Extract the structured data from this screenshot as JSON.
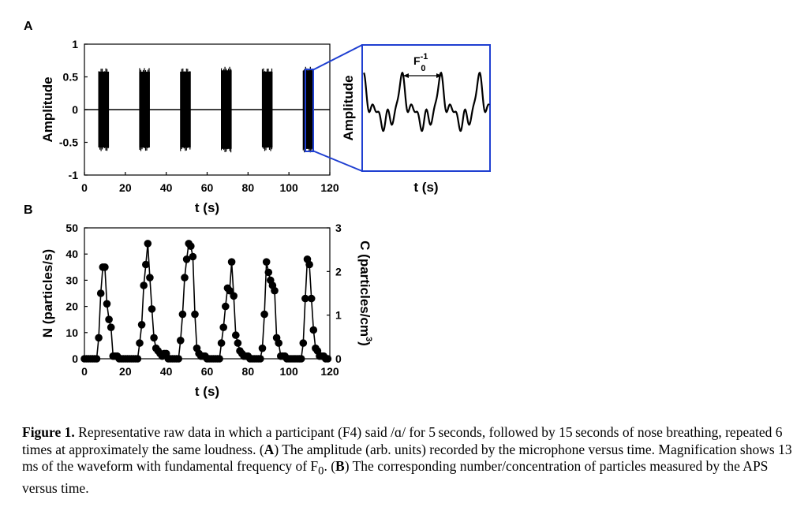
{
  "chart_data": [
    {
      "panel": "A",
      "type": "line",
      "xlabel": "t (s)",
      "ylabel": "Amplitude",
      "xlim": [
        0,
        120
      ],
      "ylim": [
        -1,
        1
      ],
      "xticks": [
        "0",
        "20",
        "40",
        "60",
        "80",
        "100",
        "120"
      ],
      "yticks": [
        "-1",
        "-0.5",
        "0",
        "0.5",
        "1"
      ],
      "voice_bursts": [
        {
          "start": 7,
          "end": 12,
          "amplitude": 0.58
        },
        {
          "start": 27,
          "end": 32,
          "amplitude": 0.58
        },
        {
          "start": 47,
          "end": 52,
          "amplitude": 0.58
        },
        {
          "start": 67,
          "end": 72,
          "amplitude": 0.6
        },
        {
          "start": 87,
          "end": 92,
          "amplitude": 0.58
        },
        {
          "start": 107,
          "end": 112,
          "amplitude": 0.6
        }
      ],
      "inset": {
        "xlabel": "t (s)",
        "ylabel": "Amplitude",
        "annotation_base": "F",
        "annotation_sup": "-1",
        "annotation_sub": "0"
      }
    },
    {
      "panel": "B",
      "type": "line",
      "xlabel": "t (s)",
      "ylabel": "N (particles/s)",
      "ylabel_right": "C (particles/cm",
      "ylabel_right_sup": "3",
      "ylabel_right_end": ")",
      "xlim": [
        0,
        120
      ],
      "ylim": [
        0,
        50
      ],
      "ylim_right": [
        0,
        3
      ],
      "xticks": [
        "0",
        "20",
        "40",
        "60",
        "80",
        "100",
        "120"
      ],
      "yticks": [
        "0",
        "10",
        "20",
        "30",
        "40",
        "50"
      ],
      "yticks_right": [
        "0",
        "1",
        "2",
        "3"
      ],
      "series": [
        {
          "x": [
            0,
            1,
            2,
            3,
            4,
            5,
            6,
            7,
            8,
            9,
            10,
            11,
            12,
            13,
            14,
            15,
            16,
            17,
            18,
            19,
            20,
            21,
            22,
            23,
            24,
            25,
            26,
            27,
            28,
            29,
            30,
            31,
            32,
            33,
            34,
            35,
            36,
            37,
            38,
            39,
            40,
            41,
            42,
            43,
            44,
            45,
            46,
            47,
            48,
            49,
            50,
            51,
            52,
            53,
            54,
            55,
            56,
            57,
            58,
            59,
            60,
            61,
            62,
            63,
            64,
            65,
            66,
            67,
            68,
            69,
            70,
            71,
            72,
            73,
            74,
            75,
            76,
            77,
            78,
            79,
            80,
            81,
            82,
            83,
            84,
            85,
            86,
            87,
            88,
            89,
            90,
            91,
            92,
            93,
            94,
            95,
            96,
            97,
            98,
            99,
            100,
            101,
            102,
            103,
            104,
            105,
            106,
            107,
            108,
            109,
            110,
            111,
            112,
            113,
            114,
            115,
            116,
            117,
            118,
            119
          ],
          "y": [
            0,
            0,
            0,
            0,
            0,
            0,
            0,
            8,
            25,
            35,
            35,
            21,
            15,
            12,
            1,
            1,
            1,
            0,
            0,
            0,
            0,
            0,
            0,
            0,
            0,
            0,
            0,
            6,
            13,
            28,
            36,
            44,
            31,
            19,
            8,
            4,
            3,
            2,
            1,
            2,
            2,
            0,
            0,
            0,
            0,
            0,
            0,
            7,
            17,
            31,
            38,
            44,
            43,
            39,
            17,
            4,
            2,
            1,
            1,
            1,
            0,
            0,
            0,
            0,
            0,
            0,
            0,
            6,
            12,
            20,
            27,
            26,
            37,
            24,
            9,
            6,
            3,
            2,
            1,
            1,
            1,
            0,
            0,
            0,
            0,
            0,
            0,
            4,
            17,
            37,
            33,
            30,
            28,
            26,
            8,
            6,
            1,
            1,
            1,
            0,
            0,
            0,
            0,
            0,
            0,
            0,
            0,
            6,
            23,
            38,
            36,
            23,
            11,
            4,
            3,
            1,
            1,
            1,
            0,
            0
          ]
        }
      ]
    }
  ],
  "caption": {
    "label": "Figure 1.",
    "text1": " Representative raw data in which a participant (F4) said /ɑ/ for 5 seconds, followed by 15 seconds of nose breathing, repeated 6 times at approximately the same loudness. (",
    "a": "A",
    "text2": ") The amplitude (arb. units) recorded by the microphone versus time. Magnification shows 13 ms of the waveform with fundamental frequency of F",
    "f0_sub": "0",
    "text3": ". (",
    "b": "B",
    "text4": ") The corresponding number/concentration of particles measured by the APS versus time."
  }
}
